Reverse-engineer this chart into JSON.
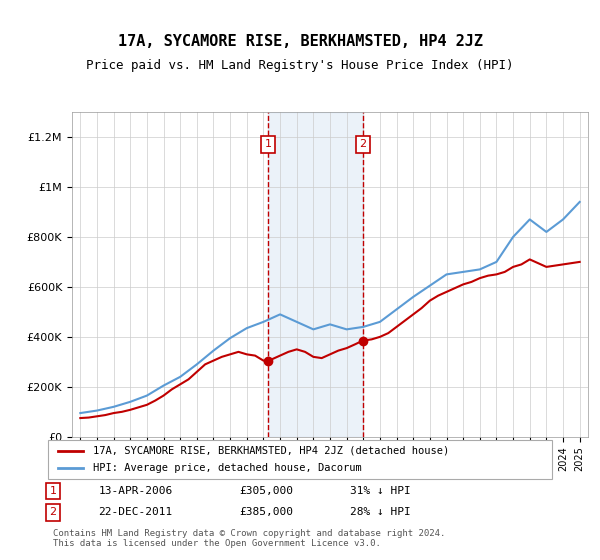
{
  "title": "17A, SYCAMORE RISE, BERKHAMSTED, HP4 2JZ",
  "subtitle": "Price paid vs. HM Land Registry's House Price Index (HPI)",
  "hpi_label": "HPI: Average price, detached house, Dacorum",
  "price_label": "17A, SYCAMORE RISE, BERKHAMSTED, HP4 2JZ (detached house)",
  "footnote": "Contains HM Land Registry data © Crown copyright and database right 2024.\nThis data is licensed under the Open Government Licence v3.0.",
  "sale1_date": "13-APR-2006",
  "sale1_price": 305000,
  "sale1_hpi_diff": "31% ↓ HPI",
  "sale2_date": "22-DEC-2011",
  "sale2_price": 385000,
  "sale2_hpi_diff": "28% ↓ HPI",
  "hpi_color": "#5b9bd5",
  "price_color": "#c00000",
  "sale1_x": 2006.28,
  "sale2_x": 2011.97,
  "ylim": [
    0,
    1300000
  ],
  "xlim_start": 1994.5,
  "xlim_end": 2025.5,
  "hpi_years": [
    1995,
    1996,
    1997,
    1998,
    1999,
    2000,
    2001,
    2002,
    2003,
    2004,
    2005,
    2006,
    2007,
    2008,
    2009,
    2010,
    2011,
    2012,
    2013,
    2014,
    2015,
    2016,
    2017,
    2018,
    2019,
    2020,
    2021,
    2022,
    2023,
    2024,
    2025
  ],
  "hpi_values": [
    95000,
    105000,
    120000,
    140000,
    165000,
    205000,
    240000,
    290000,
    345000,
    395000,
    435000,
    460000,
    490000,
    460000,
    430000,
    450000,
    430000,
    440000,
    460000,
    510000,
    560000,
    605000,
    650000,
    660000,
    670000,
    700000,
    800000,
    870000,
    820000,
    870000,
    940000
  ],
  "price_years": [
    1995.0,
    1995.5,
    1996.0,
    1996.5,
    1997.0,
    1997.5,
    1998.0,
    1998.5,
    1999.0,
    1999.5,
    2000.0,
    2000.5,
    2001.0,
    2001.5,
    2002.0,
    2002.5,
    2003.0,
    2003.5,
    2004.0,
    2004.5,
    2005.0,
    2005.5,
    2006.0,
    2006.28,
    2006.5,
    2007.0,
    2007.5,
    2008.0,
    2008.5,
    2009.0,
    2009.5,
    2010.0,
    2010.5,
    2011.0,
    2011.5,
    2011.97,
    2012.0,
    2012.5,
    2013.0,
    2013.5,
    2014.0,
    2014.5,
    2015.0,
    2015.5,
    2016.0,
    2016.5,
    2017.0,
    2017.5,
    2018.0,
    2018.5,
    2019.0,
    2019.5,
    2020.0,
    2020.5,
    2021.0,
    2021.5,
    2022.0,
    2022.5,
    2023.0,
    2023.5,
    2024.0,
    2024.5,
    2025.0
  ],
  "price_values": [
    75000,
    77000,
    82000,
    87000,
    95000,
    100000,
    108000,
    118000,
    128000,
    145000,
    165000,
    190000,
    210000,
    230000,
    260000,
    290000,
    305000,
    320000,
    330000,
    340000,
    330000,
    325000,
    305000,
    305000,
    310000,
    325000,
    340000,
    350000,
    340000,
    320000,
    315000,
    330000,
    345000,
    355000,
    370000,
    385000,
    385000,
    390000,
    400000,
    415000,
    440000,
    465000,
    490000,
    515000,
    545000,
    565000,
    580000,
    595000,
    610000,
    620000,
    635000,
    645000,
    650000,
    660000,
    680000,
    690000,
    710000,
    695000,
    680000,
    685000,
    690000,
    695000,
    700000
  ]
}
